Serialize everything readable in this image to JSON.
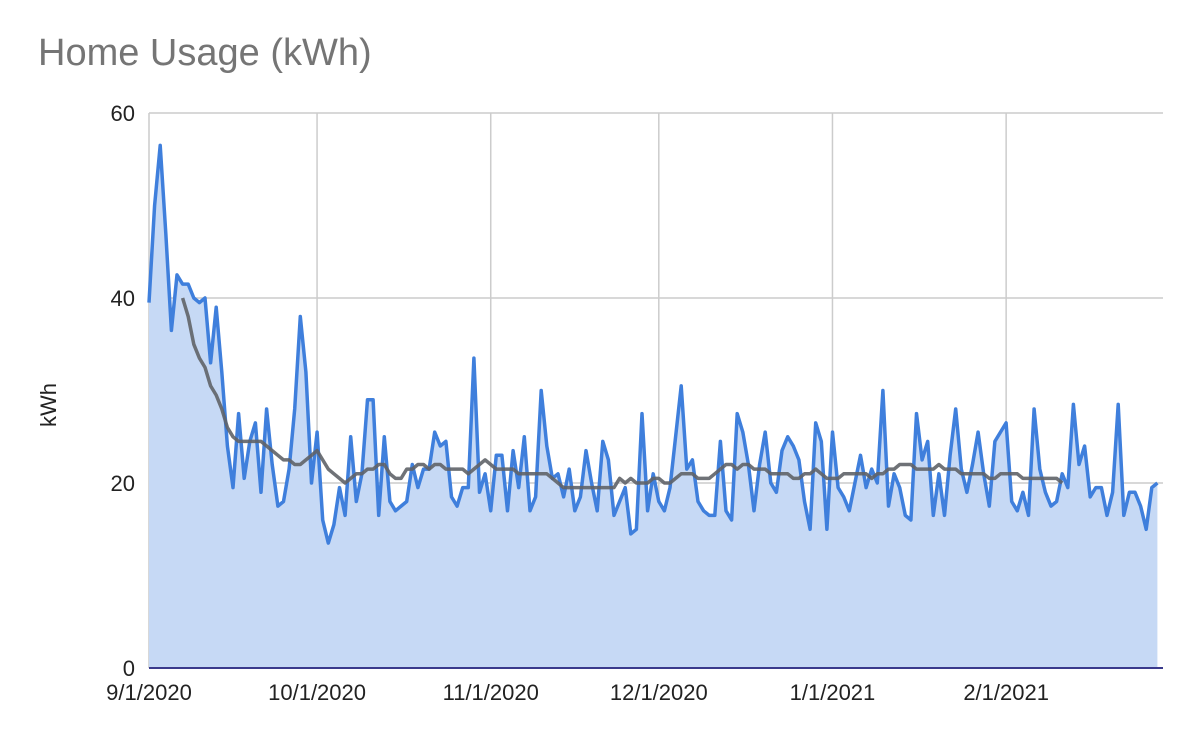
{
  "chart_data": {
    "type": "area",
    "title": "Home Usage (kWh)",
    "xlabel": "",
    "ylabel": "kWh",
    "ylim": [
      0,
      60
    ],
    "yticks": [
      0,
      20,
      40,
      60
    ],
    "xlim": [
      "2020-09-01",
      "2021-03-01"
    ],
    "xticks": [
      {
        "date": "2020-09-01",
        "label": "9/1/2020"
      },
      {
        "date": "2020-10-01",
        "label": "10/1/2020"
      },
      {
        "date": "2020-11-01",
        "label": "11/1/2020"
      },
      {
        "date": "2020-12-01",
        "label": "12/1/2020"
      },
      {
        "date": "2021-01-01",
        "label": "1/1/2021"
      },
      {
        "date": "2021-02-01",
        "label": "2/1/2021"
      }
    ],
    "grid": true,
    "legend": "none",
    "colors": {
      "series": "#3f7fdc",
      "area": "#c6d9f5",
      "trend": "#5f6368",
      "grid": "#cccccc",
      "baseline": "#3a3a8c"
    },
    "series": [
      {
        "start": "2020-09-01",
        "interval_days": 1,
        "values": [
          39.5,
          50,
          56.5,
          47,
          36.5,
          42.5,
          41.5,
          41.5,
          40,
          39.5,
          40,
          33,
          39,
          32,
          24,
          19.5,
          27.5,
          20.5,
          24.5,
          26.5,
          19,
          28,
          22,
          17.5,
          18,
          21.5,
          28,
          38,
          32,
          20,
          25.5,
          16,
          13.5,
          15.5,
          19.5,
          16.5,
          25,
          18,
          21,
          29,
          29,
          16.5,
          25,
          18,
          17,
          17.5,
          18,
          22,
          19.5,
          21.5,
          21.5,
          25.5,
          24,
          24.5,
          18.5,
          17.5,
          19.5,
          19.5,
          33.5,
          19,
          21,
          17,
          23,
          23,
          17,
          23.5,
          19.5,
          25,
          17,
          18.5,
          30,
          24,
          20.5,
          21,
          18.5,
          21.5,
          17,
          18.5,
          23.5,
          20,
          17,
          24.5,
          22.5,
          16.5,
          18,
          19.5,
          14.5,
          15,
          27.5,
          17,
          21,
          18,
          17,
          19.5,
          25,
          30.5,
          21.5,
          22.5,
          18,
          17,
          16.5,
          16.5,
          24.5,
          17,
          16,
          27.5,
          25.5,
          22,
          17,
          22,
          25.5,
          20,
          19,
          23.5,
          25,
          24,
          22.5,
          18,
          15,
          26.5,
          24.5,
          15,
          25.5,
          19.5,
          18.5,
          17,
          20,
          23,
          19.5,
          21.5,
          20,
          30,
          17.5,
          21,
          19.5,
          16.5,
          16,
          27.5,
          22.5,
          24.5,
          16.5,
          21,
          16.5,
          23,
          28,
          21.5,
          19,
          22,
          25.5,
          21,
          17.5,
          24.5,
          25.5,
          26.5,
          18,
          17,
          19,
          16.5,
          28,
          21.5,
          19,
          17.5,
          18,
          21,
          19.5,
          28.5,
          22,
          24,
          18.5,
          19.5,
          19.5,
          16.5,
          19,
          28.5,
          16.5,
          19,
          19,
          17.5,
          15,
          19.5,
          20
        ]
      },
      {
        "start": "2020-09-07",
        "interval_days": 1,
        "values": [
          40,
          38,
          35,
          33.5,
          32.5,
          30.5,
          29.5,
          28,
          26,
          25,
          24.5,
          24.5,
          24.5,
          24.5,
          24.5,
          24,
          23.5,
          23,
          22.5,
          22.5,
          22,
          22,
          22.5,
          23,
          23.5,
          22.5,
          21.5,
          21,
          20.5,
          20,
          20.5,
          21,
          21,
          21.5,
          21.5,
          22,
          22,
          21,
          20.5,
          20.5,
          21.5,
          21.5,
          22,
          22,
          21.5,
          22,
          22,
          21.5,
          21.5,
          21.5,
          21.5,
          21,
          21.5,
          22,
          22.5,
          22,
          21.5,
          21.5,
          21.5,
          21.5,
          21,
          21,
          21,
          21,
          21,
          21,
          20.5,
          20,
          19.5,
          19.5,
          19.5,
          19.5,
          19.5,
          19.5,
          19.5,
          19.5,
          19.5,
          19.5,
          20.5,
          20,
          20.5,
          20,
          20,
          20,
          20.5,
          20.5,
          20,
          20,
          20.5,
          21,
          21,
          21,
          20.5,
          20.5,
          20.5,
          21,
          21.5,
          22,
          22,
          21.5,
          22,
          22,
          21.5,
          21.5,
          21.5,
          21,
          21,
          21,
          21,
          20.5,
          20.5,
          21,
          21,
          21.5,
          21,
          20.5,
          20.5,
          20.5,
          21,
          21,
          21,
          21,
          21,
          20.5,
          21,
          21,
          21.5,
          21.5,
          22,
          22,
          22,
          21.5,
          21.5,
          21.5,
          21.5,
          22,
          21.5,
          21.5,
          21.5,
          21,
          21,
          21,
          21,
          21,
          20.5,
          20.5,
          21,
          21,
          21,
          21,
          20.5,
          20.5,
          20.5,
          20.5,
          20.5,
          20.5,
          20.5,
          20
        ]
      }
    ]
  }
}
